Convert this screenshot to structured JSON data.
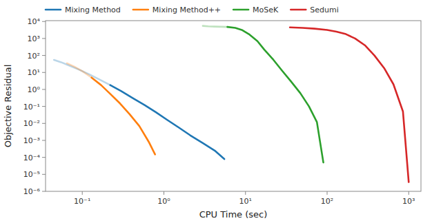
{
  "chart_data": {
    "type": "line",
    "xlabel": "CPU Time (sec)",
    "ylabel": "Objective Residual",
    "log": true,
    "grid": false,
    "legend": "upper left",
    "xlim": [
      0.03548133892335755,
      1412.537544622754
    ],
    "ylim": [
      1e-06,
      11220.184543019634
    ],
    "xticks": [
      {
        "value": 0.1,
        "label": "10⁻¹"
      },
      {
        "value": 1,
        "label": "10⁰"
      },
      {
        "value": 10,
        "label": "10¹"
      },
      {
        "value": 100,
        "label": "10²"
      },
      {
        "value": 1000,
        "label": "10³"
      }
    ],
    "yticks": [
      {
        "value": 1e-06,
        "label": "10⁻⁶"
      },
      {
        "value": 1e-05,
        "label": "10⁻⁵"
      },
      {
        "value": 0.0001,
        "label": "10⁻⁴"
      },
      {
        "value": 0.001,
        "label": "10⁻³"
      },
      {
        "value": 0.01,
        "label": "10⁻²"
      },
      {
        "value": 0.1,
        "label": "10⁻¹"
      },
      {
        "value": 1,
        "label": "10⁰"
      },
      {
        "value": 10,
        "label": "10¹"
      },
      {
        "value": 100,
        "label": "10²"
      },
      {
        "value": 1000,
        "label": "10³"
      },
      {
        "value": 10000,
        "label": "10⁴"
      }
    ],
    "series": [
      {
        "color": "#1f77b4",
        "x": [
          0.045,
          0.055,
          0.07,
          0.09,
          0.12,
          0.16,
          0.22
        ],
        "values": [
          55,
          40,
          25,
          15,
          8,
          4,
          1.8
        ]
      },
      {
        "name": "Mixing Method",
        "color": "#1f77b4",
        "x": [
          0.22,
          0.3,
          0.42,
          0.58,
          0.8,
          1.1,
          1.5,
          2.1,
          3.0,
          4.2,
          5.5
        ],
        "values": [
          1.8,
          0.8,
          0.3,
          0.12,
          0.045,
          0.016,
          0.006,
          0.002,
          0.0007,
          0.00025,
          8e-05
        ]
      },
      {
        "color": "#ff7f0e",
        "x": [
          0.065,
          0.08,
          0.1,
          0.13
        ],
        "values": [
          35,
          22,
          12,
          5
        ]
      },
      {
        "name": "Mixing Method++",
        "color": "#ff7f0e",
        "x": [
          0.13,
          0.17,
          0.22,
          0.29,
          0.38,
          0.5,
          0.65,
          0.78
        ],
        "values": [
          5,
          1.8,
          0.55,
          0.15,
          0.035,
          0.007,
          0.00085,
          0.00015
        ]
      },
      {
        "color": "#2ca02c",
        "x": [
          3.0,
          3.5,
          4.2,
          5.0,
          6.0
        ],
        "values": [
          5500,
          5200,
          5000,
          4900,
          4800
        ]
      },
      {
        "name": "MoSeK",
        "color": "#2ca02c",
        "x": [
          6.0,
          7.5,
          9.0,
          11,
          14,
          17,
          22,
          28,
          36,
          47,
          60,
          75,
          90
        ],
        "values": [
          4800,
          4200,
          3200,
          1800,
          700,
          220,
          55,
          13,
          3.0,
          0.6,
          0.1,
          0.012,
          5e-05
        ]
      },
      {
        "name": "Sedumi",
        "color": "#d62728",
        "x": [
          35,
          50,
          70,
          100,
          130,
          170,
          220,
          290,
          380,
          500,
          650,
          850,
          1000
        ],
        "values": [
          4500,
          4200,
          3800,
          3200,
          2500,
          1800,
          1000,
          400,
          100,
          18,
          2.0,
          0.05,
          3.5e-06
        ]
      }
    ]
  }
}
